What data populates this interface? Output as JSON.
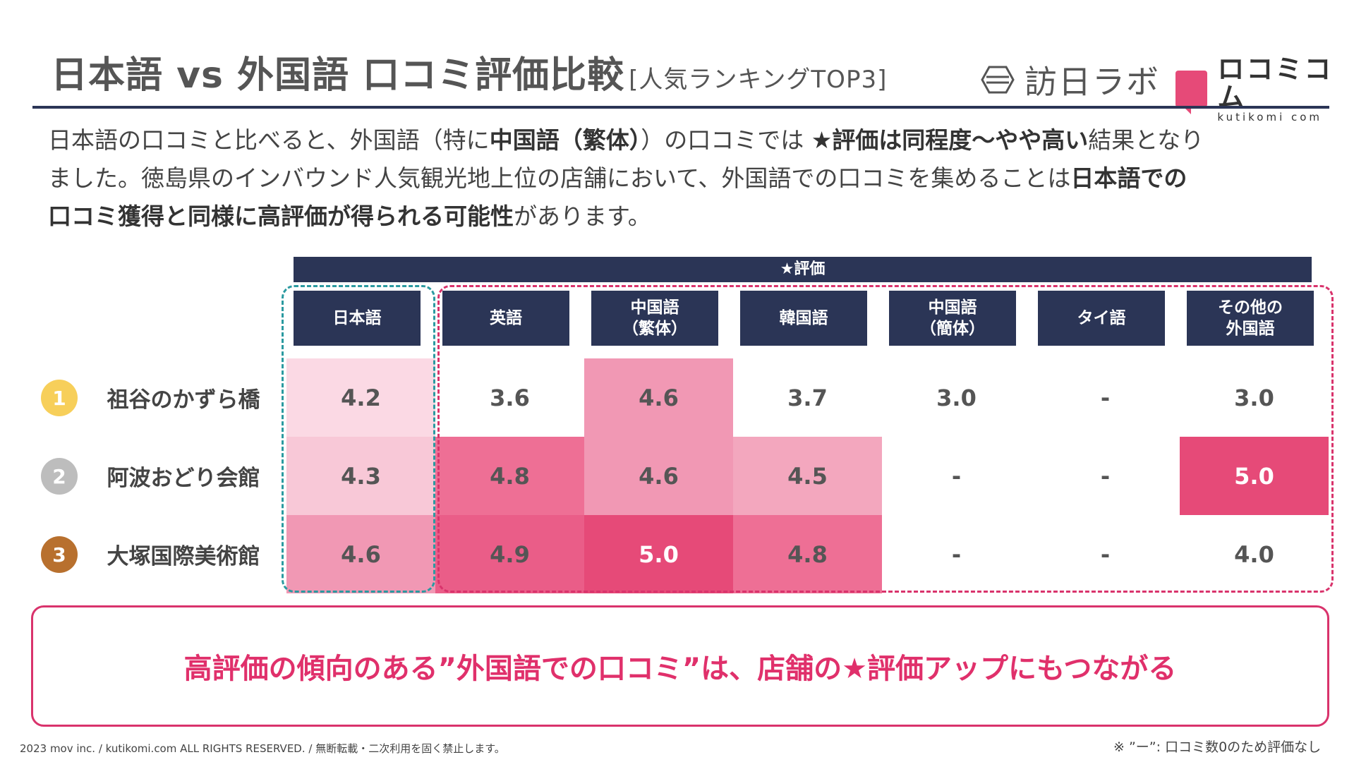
{
  "header": {
    "title": "日本語 vs 外国語 口コミ評価比較",
    "subtitle": "[人気ランキングTOP3]",
    "logo_left": "訪日ラボ",
    "logo_right_big": "ロコミコム",
    "logo_right_small": "kutikomi com"
  },
  "intro": {
    "line1_a": "日本語の口コミと比べると、外国語（特に",
    "line1_b": "中国語（繁体）",
    "line1_c": "）の口コミでは ",
    "line1_d": "★評価は同程度〜やや高い",
    "line1_e": "結果となり",
    "line2_a": "ました。徳島県のインバウンド人気観光地上位の店舗において、外国語での口コミを集めることは",
    "line2_b": "日本語での",
    "line3_a": "口コミ獲得と同様に高評価が得られる可能性",
    "line3_b": "があります。"
  },
  "table": {
    "header": "★評価",
    "columns": [
      "日本語",
      "英語",
      "中国語\n（繁体）",
      "韓国語",
      "中国語\n（簡体）",
      "タイ語",
      "その他の\n外国語"
    ],
    "rows": [
      {
        "rank": "1",
        "name": "祖谷のかずら橋",
        "values": [
          "4.2",
          "3.6",
          "4.6",
          "3.7",
          "3.0",
          "-",
          "3.0"
        ]
      },
      {
        "rank": "2",
        "name": "阿波おどり会館",
        "values": [
          "4.3",
          "4.8",
          "4.6",
          "4.5",
          "-",
          "-",
          "5.0"
        ]
      },
      {
        "rank": "3",
        "name": "大塚国際美術館",
        "values": [
          "4.6",
          "4.9",
          "5.0",
          "4.8",
          "-",
          "-",
          "4.0"
        ]
      }
    ]
  },
  "colors": {
    "navy": "#2b3556",
    "pink_strong": "#e64a78",
    "gold": "#f7cf5a",
    "silver": "#bdbdbd",
    "bronze": "#b8702e"
  },
  "callout": "高評価の傾向のある”外国語での口コミ”は、店舗の★評価アップにもつながる",
  "footer": "2023 mov inc. / kutikomi.com ALL RIGHTS RESERVED. / 無断転載・二次利用を固く禁止します。",
  "note": "※ ”ー”: 口コミ数0のため評価なし"
}
